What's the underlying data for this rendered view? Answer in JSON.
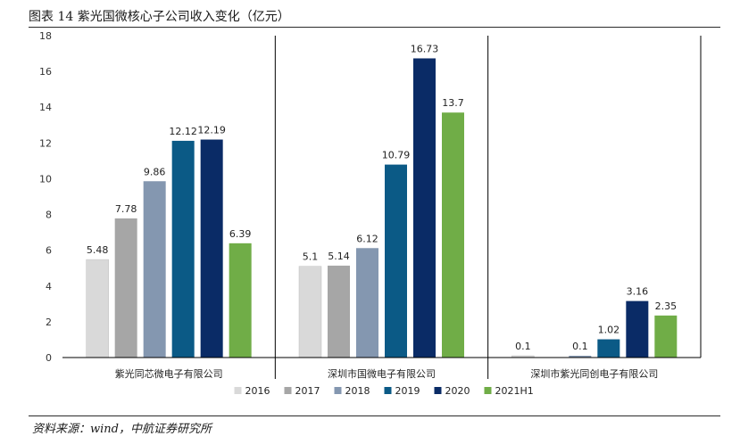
{
  "figure_title": "图表 14 紫光国微核心子公司收入变化（亿元）",
  "source_note": "资料来源：wind，中航证券研究所",
  "colors": {
    "2016": "#d9d9d9",
    "2017": "#a6a6a6",
    "2018": "#8497b0",
    "2019": "#0b5a86",
    "2020": "#0a2b66",
    "2021H1": "#70ad47"
  },
  "chart_data": {
    "type": "bar",
    "title": "",
    "xlabel": "",
    "ylabel": "",
    "ylim": [
      0,
      18
    ],
    "yticks": [
      0,
      2,
      4,
      6,
      8,
      10,
      12,
      14,
      16,
      18
    ],
    "categories": [
      "紫光同芯微电子有限公司",
      "深圳市国微电子有限公司",
      "深圳市紫光同创电子有限公司"
    ],
    "series": [
      {
        "name": "2016",
        "values": [
          5.48,
          5.1,
          0.1
        ],
        "labels": [
          "5.48",
          "5.1",
          "0.1"
        ]
      },
      {
        "name": "2017",
        "values": [
          7.78,
          5.14,
          null
        ],
        "labels": [
          "7.78",
          "5.14",
          ""
        ]
      },
      {
        "name": "2018",
        "values": [
          9.86,
          6.12,
          0.1
        ],
        "labels": [
          "9.86",
          "6.12",
          "0.1"
        ]
      },
      {
        "name": "2019",
        "values": [
          12.12,
          10.79,
          1.02
        ],
        "labels": [
          "12.12",
          "10.79",
          "1.02"
        ]
      },
      {
        "name": "2020",
        "values": [
          12.19,
          16.73,
          3.16
        ],
        "labels": [
          "12.19",
          "16.73",
          "3.16"
        ]
      },
      {
        "name": "2021H1",
        "values": [
          6.39,
          13.7,
          2.35
        ],
        "labels": [
          "6.39",
          "13.7",
          "2.35"
        ]
      }
    ],
    "legend_position": "bottom",
    "grid": false
  }
}
